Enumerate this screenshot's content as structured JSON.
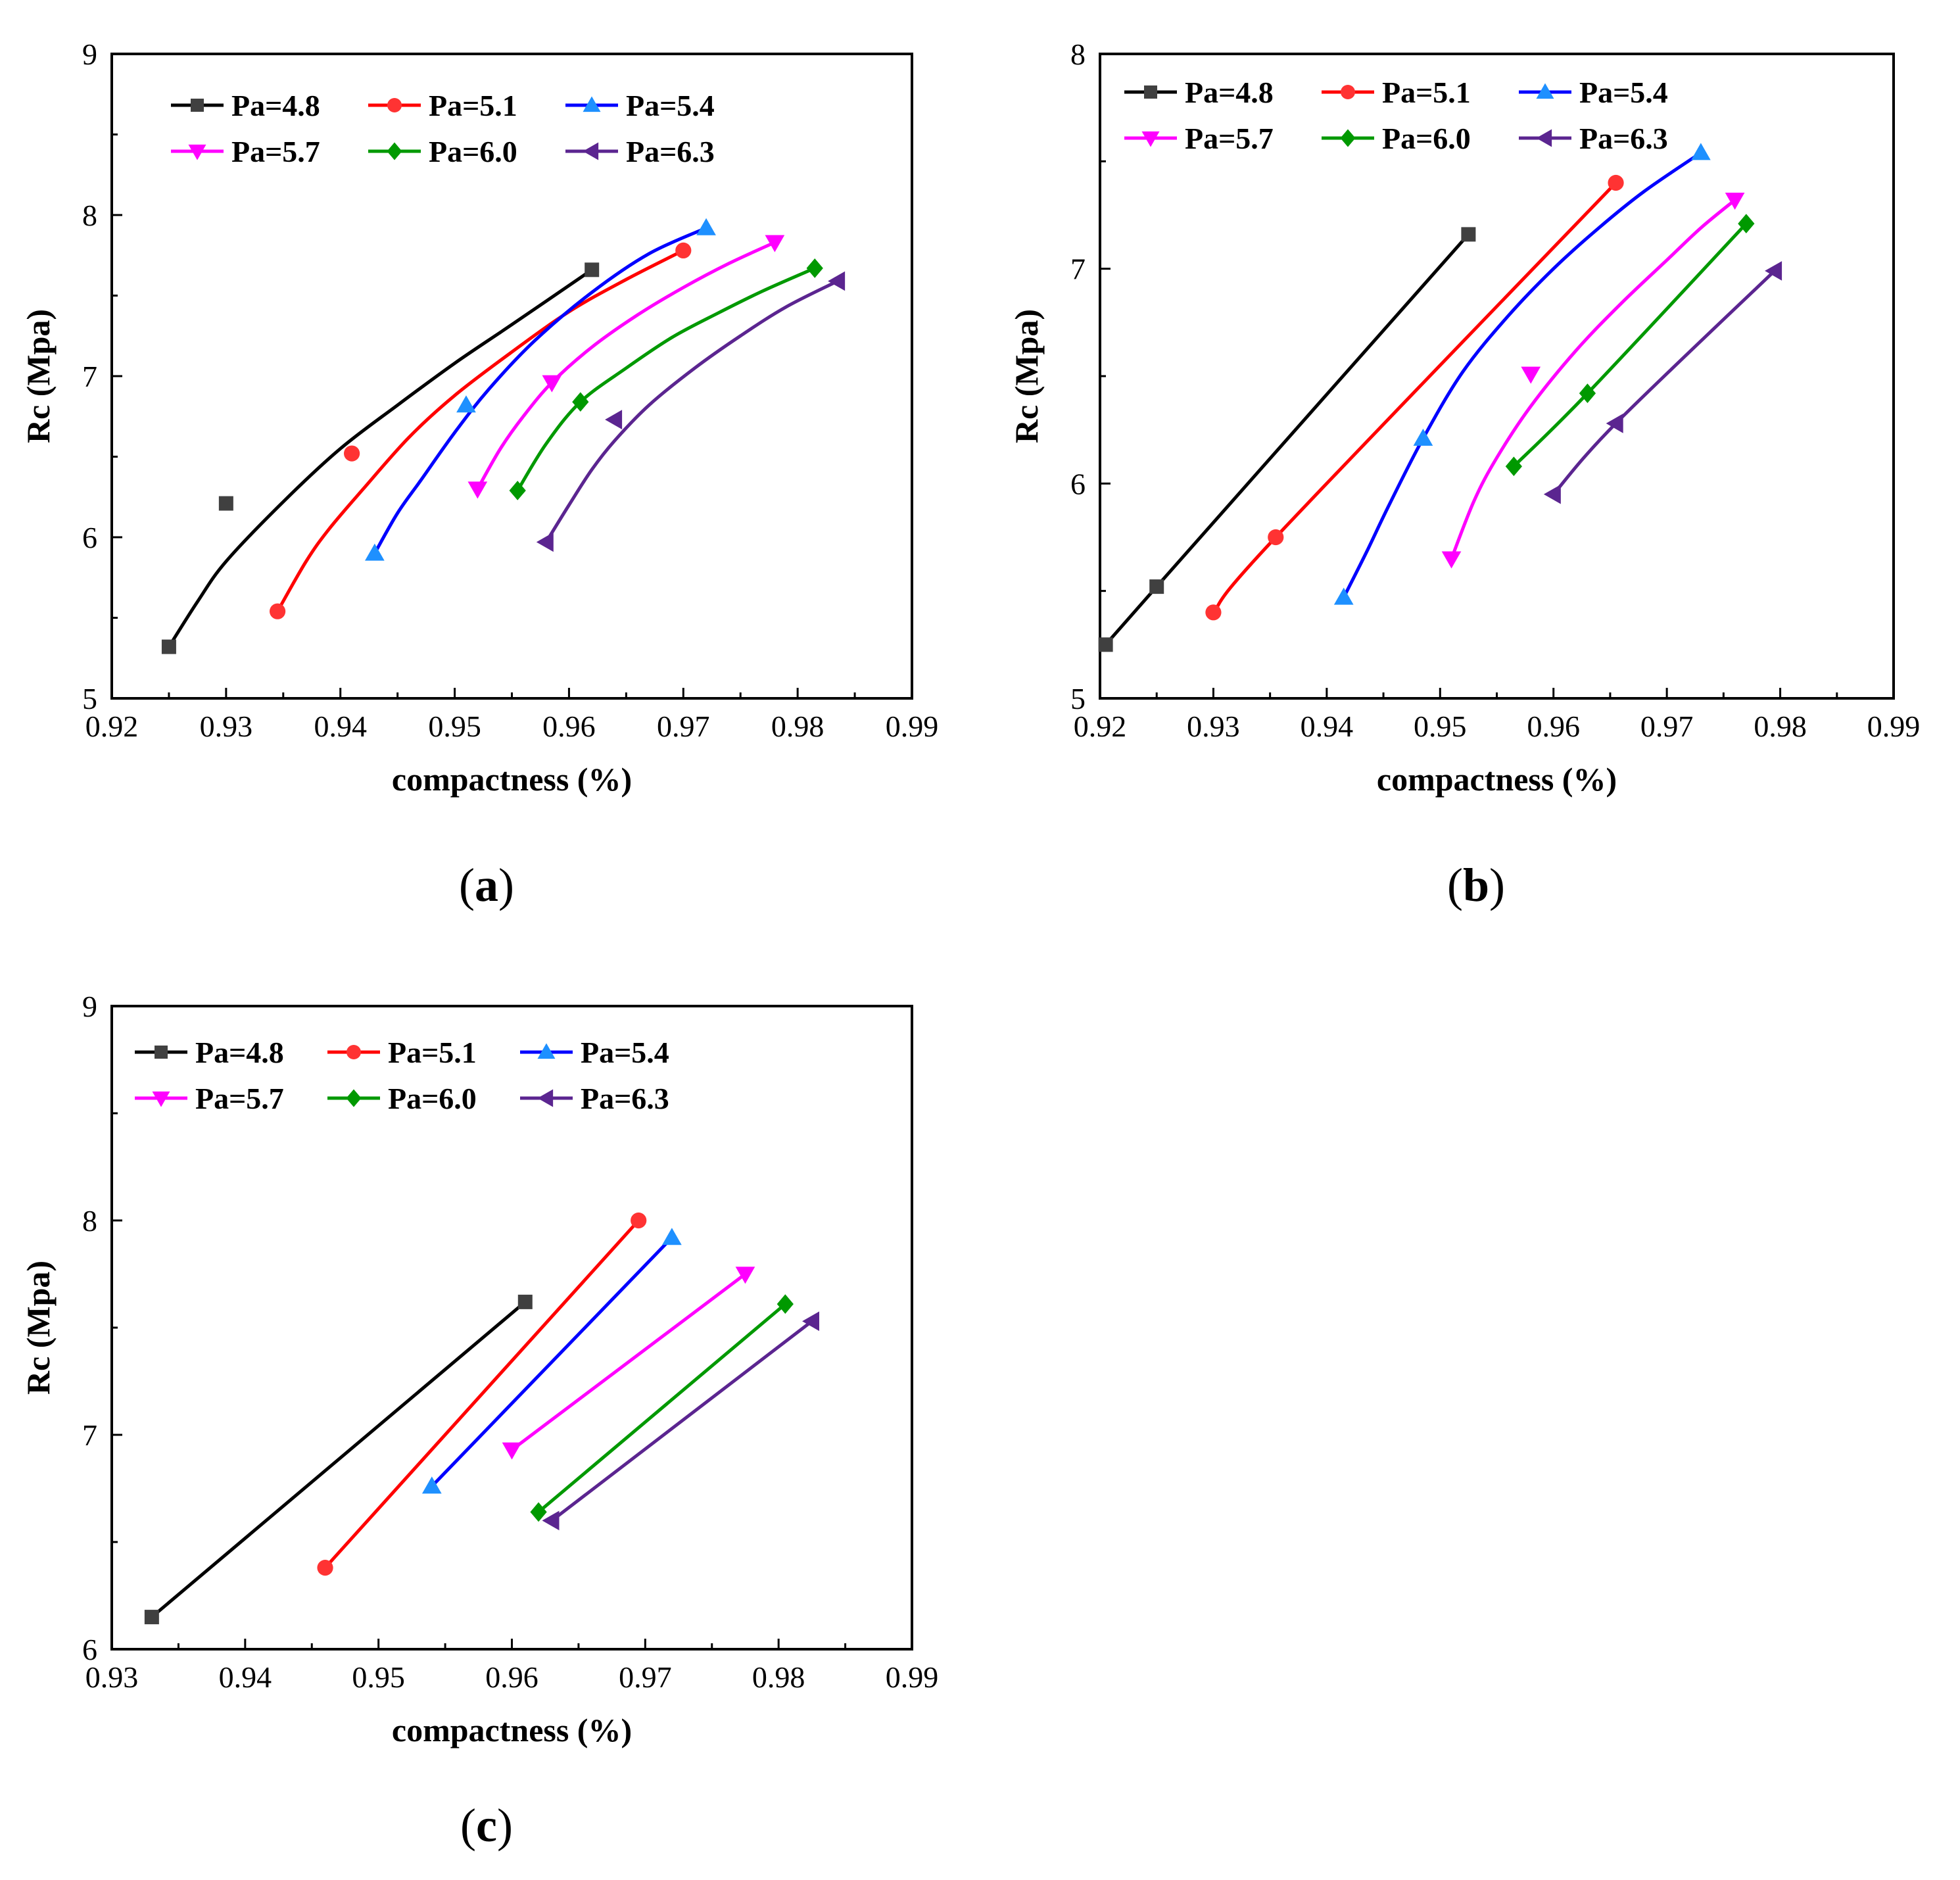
{
  "chart_data": [
    {
      "id": "a",
      "type": "line",
      "caption": {
        "open": "(",
        "letter": "a",
        "close": ")"
      },
      "xlabel": "compactness (%)",
      "ylabel": "Rc (Mpa)",
      "xlim": [
        0.92,
        0.99
      ],
      "ylim": [
        5,
        9
      ],
      "xticks": [
        "0.92",
        "0.93",
        "0.94",
        "0.95",
        "0.96",
        "0.97",
        "0.98",
        "0.99"
      ],
      "yticks": [
        "5",
        "6",
        "7",
        "8",
        "9"
      ],
      "legend_placement": "top-left",
      "series": [
        {
          "name": "Pa=4.8",
          "color": "#000000",
          "marker": "square",
          "marker_color": "#404040",
          "x": [
            0.925,
            0.93,
            0.962
          ],
          "y": [
            5.32,
            6.21,
            7.66
          ],
          "curve_x": [
            0.925,
            0.9275,
            0.93,
            0.935,
            0.94,
            0.945,
            0.95,
            0.955,
            0.962
          ],
          "curve_y": [
            5.32,
            5.6,
            5.85,
            6.22,
            6.55,
            6.82,
            7.08,
            7.32,
            7.66
          ]
        },
        {
          "name": "Pa=5.1",
          "color": "#ff0000",
          "marker": "circle",
          "marker_color": "#ff3333",
          "x": [
            0.9345,
            0.941,
            0.97
          ],
          "y": [
            5.54,
            6.52,
            7.78
          ],
          "curve_x": [
            0.9345,
            0.937,
            0.939,
            0.942,
            0.946,
            0.95,
            0.955,
            0.96,
            0.965,
            0.97
          ],
          "curve_y": [
            5.54,
            5.85,
            6.05,
            6.3,
            6.62,
            6.88,
            7.15,
            7.4,
            7.6,
            7.78
          ]
        },
        {
          "name": "Pa=5.4",
          "color": "#0000ff",
          "marker": "triangle-up",
          "marker_color": "#1e90ff",
          "x": [
            0.943,
            0.951,
            0.972
          ],
          "y": [
            5.9,
            6.82,
            7.92
          ],
          "curve_x": [
            0.943,
            0.945,
            0.947,
            0.95,
            0.953,
            0.957,
            0.962,
            0.967,
            0.972
          ],
          "curve_y": [
            5.9,
            6.15,
            6.35,
            6.65,
            6.92,
            7.22,
            7.52,
            7.76,
            7.92
          ]
        },
        {
          "name": "Pa=5.7",
          "color": "#ff00ff",
          "marker": "triangle-down",
          "marker_color": "#ff00ff",
          "x": [
            0.952,
            0.9585,
            0.978
          ],
          "y": [
            6.3,
            6.96,
            7.83
          ],
          "curve_x": [
            0.952,
            0.954,
            0.956,
            0.9585,
            0.962,
            0.966,
            0.97,
            0.974,
            0.978
          ],
          "curve_y": [
            6.3,
            6.55,
            6.75,
            6.96,
            7.18,
            7.38,
            7.55,
            7.7,
            7.83
          ]
        },
        {
          "name": "Pa=6.0",
          "color": "#009900",
          "marker": "diamond",
          "marker_color": "#009900",
          "x": [
            0.9555,
            0.961,
            0.9815
          ],
          "y": [
            6.29,
            6.84,
            7.67
          ],
          "curve_x": [
            0.9555,
            0.958,
            0.961,
            0.965,
            0.969,
            0.973,
            0.977,
            0.9815
          ],
          "curve_y": [
            6.29,
            6.58,
            6.84,
            7.05,
            7.24,
            7.39,
            7.53,
            7.67
          ]
        },
        {
          "name": "Pa=6.3",
          "color": "#5b2590",
          "marker": "triangle-left",
          "marker_color": "#5b2590",
          "x": [
            0.958,
            0.964,
            0.9835
          ],
          "y": [
            5.97,
            6.73,
            7.59
          ],
          "curve_x": [
            0.958,
            0.96,
            0.962,
            0.964,
            0.967,
            0.971,
            0.975,
            0.979,
            0.9835
          ],
          "curve_y": [
            5.97,
            6.2,
            6.42,
            6.6,
            6.82,
            7.05,
            7.25,
            7.43,
            7.59
          ]
        }
      ]
    },
    {
      "id": "b",
      "type": "line",
      "caption": {
        "open": "(",
        "letter": "b",
        "close": ")"
      },
      "xlabel": "compactness (%)",
      "ylabel": "Rc (Mpa)",
      "xlim": [
        0.92,
        0.99
      ],
      "ylim": [
        5,
        8
      ],
      "xticks": [
        "0.92",
        "0.93",
        "0.94",
        "0.95",
        "0.96",
        "0.97",
        "0.98",
        "0.99"
      ],
      "yticks": [
        "5",
        "6",
        "7",
        "8"
      ],
      "legend_placement": "top-left",
      "series": [
        {
          "name": "Pa=4.8",
          "color": "#000000",
          "marker": "square",
          "marker_color": "#404040",
          "x": [
            0.9205,
            0.925,
            0.9525
          ],
          "y": [
            5.25,
            5.52,
            7.16
          ],
          "curve_x": [
            0.9205,
            0.925,
            0.9525
          ],
          "curve_y": [
            5.25,
            5.52,
            7.16
          ]
        },
        {
          "name": "Pa=5.1",
          "color": "#ff0000",
          "marker": "circle",
          "marker_color": "#ff3333",
          "x": [
            0.93,
            0.9355,
            0.9655
          ],
          "y": [
            5.4,
            5.75,
            7.4
          ],
          "curve_x": [
            0.93,
            0.9355,
            0.9655
          ],
          "curve_y": [
            5.4,
            5.75,
            7.4
          ]
        },
        {
          "name": "Pa=5.4",
          "color": "#0000ff",
          "marker": "triangle-up",
          "marker_color": "#1e90ff",
          "x": [
            0.9415,
            0.9485,
            0.973
          ],
          "y": [
            5.47,
            6.21,
            7.54
          ],
          "curve_x": [
            0.9415,
            0.9435,
            0.9455,
            0.9485,
            0.952,
            0.956,
            0.96,
            0.964,
            0.968,
            0.973
          ],
          "curve_y": [
            5.47,
            5.68,
            5.9,
            6.21,
            6.52,
            6.78,
            7.0,
            7.19,
            7.36,
            7.54
          ]
        },
        {
          "name": "Pa=5.7",
          "color": "#ff00ff",
          "marker": "triangle-down",
          "marker_color": "#ff00ff",
          "x": [
            0.951,
            0.958,
            0.976
          ],
          "y": [
            5.65,
            6.51,
            7.32
          ],
          "curve_x": [
            0.951,
            0.953,
            0.955,
            0.958,
            0.962,
            0.966,
            0.97,
            0.973,
            0.976
          ],
          "curve_y": [
            5.65,
            5.92,
            6.12,
            6.36,
            6.62,
            6.84,
            7.04,
            7.19,
            7.32
          ]
        },
        {
          "name": "Pa=6.0",
          "color": "#009900",
          "marker": "diamond",
          "marker_color": "#009900",
          "x": [
            0.9565,
            0.963,
            0.977
          ],
          "y": [
            6.08,
            6.42,
            7.21
          ],
          "curve_x": [
            0.9565,
            0.963,
            0.977
          ],
          "curve_y": [
            6.08,
            6.42,
            7.21
          ]
        },
        {
          "name": "Pa=6.3",
          "color": "#5b2590",
          "marker": "triangle-left",
          "marker_color": "#5b2590",
          "x": [
            0.96,
            0.9655,
            0.9795
          ],
          "y": [
            5.95,
            6.28,
            6.99
          ],
          "curve_x": [
            0.96,
            0.9655,
            0.9795
          ],
          "curve_y": [
            5.95,
            6.28,
            6.99
          ]
        }
      ]
    },
    {
      "id": "c",
      "type": "line",
      "caption": {
        "open": "(",
        "letter": "c",
        "close": ")"
      },
      "xlabel": "compactness (%)",
      "ylabel": "Rc (Mpa)",
      "xlim": [
        0.93,
        0.99
      ],
      "ylim": [
        6,
        9
      ],
      "xticks": [
        "0.93",
        "0.94",
        "0.95",
        "0.96",
        "0.97",
        "0.98",
        "0.99"
      ],
      "yticks": [
        "6",
        "7",
        "8",
        "9"
      ],
      "legend_placement": "top-left",
      "series": [
        {
          "name": "Pa=4.8",
          "color": "#000000",
          "marker": "square",
          "marker_color": "#404040",
          "x": [
            0.933,
            0.961
          ],
          "y": [
            6.15,
            7.62
          ],
          "curve_x": [
            0.933,
            0.961
          ],
          "curve_y": [
            6.15,
            7.62
          ]
        },
        {
          "name": "Pa=5.1",
          "color": "#ff0000",
          "marker": "circle",
          "marker_color": "#ff3333",
          "x": [
            0.946,
            0.9695
          ],
          "y": [
            6.38,
            8.0
          ],
          "curve_x": [
            0.946,
            0.9695
          ],
          "curve_y": [
            6.38,
            8.0
          ]
        },
        {
          "name": "Pa=5.4",
          "color": "#0000ff",
          "marker": "triangle-up",
          "marker_color": "#1e90ff",
          "x": [
            0.954,
            0.972
          ],
          "y": [
            6.76,
            7.92
          ],
          "curve_x": [
            0.954,
            0.972
          ],
          "curve_y": [
            6.76,
            7.92
          ]
        },
        {
          "name": "Pa=5.7",
          "color": "#ff00ff",
          "marker": "triangle-down",
          "marker_color": "#ff00ff",
          "x": [
            0.96,
            0.9775
          ],
          "y": [
            6.93,
            7.75
          ],
          "curve_x": [
            0.96,
            0.9775
          ],
          "curve_y": [
            6.93,
            7.75
          ]
        },
        {
          "name": "Pa=6.0",
          "color": "#009900",
          "marker": "diamond",
          "marker_color": "#009900",
          "x": [
            0.962,
            0.9805
          ],
          "y": [
            6.64,
            7.61
          ],
          "curve_x": [
            0.962,
            0.9805
          ],
          "curve_y": [
            6.64,
            7.61
          ]
        },
        {
          "name": "Pa=6.3",
          "color": "#5b2590",
          "marker": "triangle-left",
          "marker_color": "#5b2590",
          "x": [
            0.963,
            0.9825
          ],
          "y": [
            6.6,
            7.53
          ],
          "curve_x": [
            0.963,
            0.9825
          ],
          "curve_y": [
            6.6,
            7.53
          ]
        }
      ]
    }
  ]
}
